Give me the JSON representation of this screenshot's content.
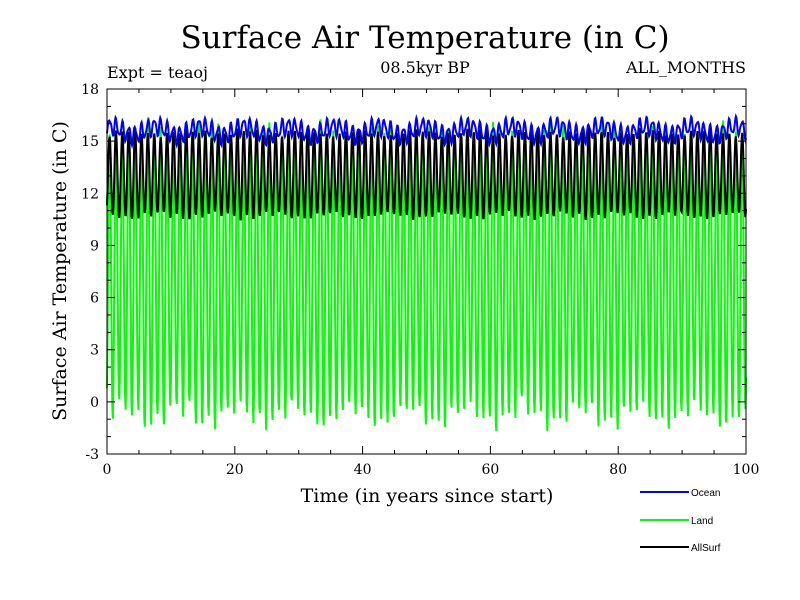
{
  "chart_data": {
    "type": "line",
    "title": "Surface Air Temperature (in C)",
    "subtitle": "08.5kyr BP",
    "expt_label": "Expt = teaoj",
    "months_label": "ALL_MONTHS",
    "xlabel": "Time (in years since start)",
    "ylabel": "Surface Air Temperature (in C)",
    "xlim": [
      0,
      100
    ],
    "ylim": [
      -3,
      18
    ],
    "xticks": [
      0,
      20,
      40,
      60,
      80,
      100
    ],
    "xtick_labels": [
      "0",
      "20",
      "40",
      "60",
      "80",
      "100"
    ],
    "yticks": [
      -3,
      0,
      3,
      6,
      9,
      12,
      15,
      18
    ],
    "ytick_labels": [
      "-3",
      "0",
      "3",
      "6",
      "9",
      "12",
      "15",
      "18"
    ],
    "grid": false,
    "legend_position": "bottom-right",
    "sampling": "monthly, 1200 points, seasonal cycle period 1 year",
    "series": [
      {
        "name": "Ocean",
        "color": "#0000ff",
        "mean": 15.6,
        "amplitude": 0.45,
        "range": [
          15.0,
          16.5
        ]
      },
      {
        "name": "Land",
        "color": "#00ff00",
        "mean": 7.3,
        "amplitude": 8.1,
        "range": [
          -1.5,
          15.8
        ]
      },
      {
        "name": "AllSurf",
        "color": "#000000",
        "mean": 13.1,
        "amplitude": 2.4,
        "range": [
          10.4,
          15.8
        ]
      }
    ]
  }
}
